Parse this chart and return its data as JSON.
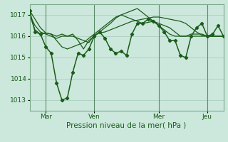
{
  "background_color": "#cce8dc",
  "plot_bg_color": "#cce8dc",
  "line_color": "#1a5c1a",
  "grid_color": "#aacfbe",
  "text_color": "#1a5c1a",
  "xlabel": "Pression niveau de la mer( hPa )",
  "ylim": [
    1012.5,
    1017.5
  ],
  "yticks": [
    1013,
    1014,
    1015,
    1016,
    1017
  ],
  "xlim": [
    0,
    216
  ],
  "x_tick_positions": [
    18,
    72,
    144,
    198
  ],
  "x_tick_labels": [
    "Mar",
    "Ven",
    "Mer",
    "Jeu"
  ],
  "x_vlines": [
    18,
    72,
    144,
    198
  ],
  "series": [
    {
      "x": [
        0,
        6,
        12,
        18,
        24,
        30,
        36,
        42,
        48,
        54,
        60,
        66,
        72,
        78,
        84,
        90,
        96,
        102,
        108,
        114,
        120,
        126,
        132,
        138,
        144,
        150,
        156,
        162,
        168,
        174,
        180,
        186,
        192,
        198,
        204,
        210,
        216
      ],
      "y": [
        1017.2,
        1016.8,
        1016.4,
        1016.15,
        1016.1,
        1016.0,
        1016.1,
        1016.0,
        1016.0,
        1015.9,
        1015.8,
        1015.7,
        1016.05,
        1016.15,
        1016.2,
        1016.3,
        1016.4,
        1016.5,
        1016.6,
        1016.7,
        1016.75,
        1016.8,
        1016.85,
        1016.9,
        1016.9,
        1016.85,
        1016.8,
        1016.75,
        1016.7,
        1016.6,
        1016.4,
        1016.2,
        1016.05,
        1016.0,
        1016.0,
        1016.0,
        1016.0
      ],
      "marker": false,
      "lw": 0.9
    },
    {
      "x": [
        0,
        6,
        12,
        18,
        24,
        30,
        36,
        42,
        48,
        54,
        60,
        66,
        72,
        78,
        84,
        90,
        96,
        102,
        108,
        114,
        120,
        126,
        132,
        138,
        144,
        150,
        156,
        162,
        168,
        174,
        180,
        186,
        192,
        198,
        204,
        210,
        216
      ],
      "y": [
        1017.0,
        1016.3,
        1016.1,
        1016.15,
        1016.1,
        1015.8,
        1015.5,
        1015.4,
        1015.5,
        1015.6,
        1015.7,
        1015.9,
        1016.1,
        1016.3,
        1016.5,
        1016.7,
        1016.9,
        1017.0,
        1017.1,
        1017.2,
        1017.3,
        1017.1,
        1016.9,
        1016.7,
        1016.5,
        1016.3,
        1016.1,
        1016.0,
        1016.0,
        1016.0,
        1016.0,
        1016.0,
        1016.0,
        1016.0,
        1016.0,
        1016.0,
        1016.0
      ],
      "marker": false,
      "lw": 0.9
    },
    {
      "x": [
        0,
        6,
        12,
        18,
        24,
        30,
        36,
        42,
        48,
        54,
        60,
        66,
        72,
        78,
        84,
        90,
        96,
        102,
        108,
        114,
        120,
        126,
        132,
        138,
        144,
        150,
        156,
        162,
        168,
        174,
        180,
        186,
        192,
        198,
        204,
        210,
        216
      ],
      "y": [
        1017.0,
        1016.5,
        1016.2,
        1016.1,
        1016.0,
        1015.9,
        1016.0,
        1016.0,
        1016.1,
        1015.8,
        1015.4,
        1015.8,
        1016.0,
        1016.2,
        1016.4,
        1016.6,
        1016.85,
        1017.0,
        1016.9,
        1016.8,
        1016.7,
        1016.6,
        1016.65,
        1016.7,
        1016.6,
        1016.5,
        1016.4,
        1016.2,
        1016.0,
        1016.0,
        1016.1,
        1016.1,
        1016.1,
        1016.0,
        1016.0,
        1016.0,
        1016.0
      ],
      "marker": false,
      "lw": 0.9
    },
    {
      "x": [
        0,
        6,
        12,
        18,
        24,
        30,
        36,
        42,
        48,
        54,
        60,
        66,
        72,
        78,
        84,
        90,
        96,
        102,
        108,
        114,
        120,
        126,
        132,
        138,
        144,
        150,
        156,
        162,
        168,
        174,
        180,
        186,
        192,
        198,
        204,
        210,
        216
      ],
      "y": [
        1017.2,
        1016.2,
        1016.1,
        1015.5,
        1015.2,
        1013.8,
        1013.0,
        1013.1,
        1014.3,
        1015.2,
        1015.1,
        1015.4,
        1016.0,
        1016.2,
        1015.9,
        1015.4,
        1015.2,
        1015.3,
        1015.1,
        1016.1,
        1016.6,
        1016.6,
        1016.8,
        1016.7,
        1016.5,
        1016.2,
        1015.8,
        1015.8,
        1015.1,
        1015.0,
        1016.0,
        1016.4,
        1016.6,
        1016.0,
        1016.1,
        1016.5,
        1016.0
      ],
      "marker": true,
      "lw": 1.1
    }
  ]
}
